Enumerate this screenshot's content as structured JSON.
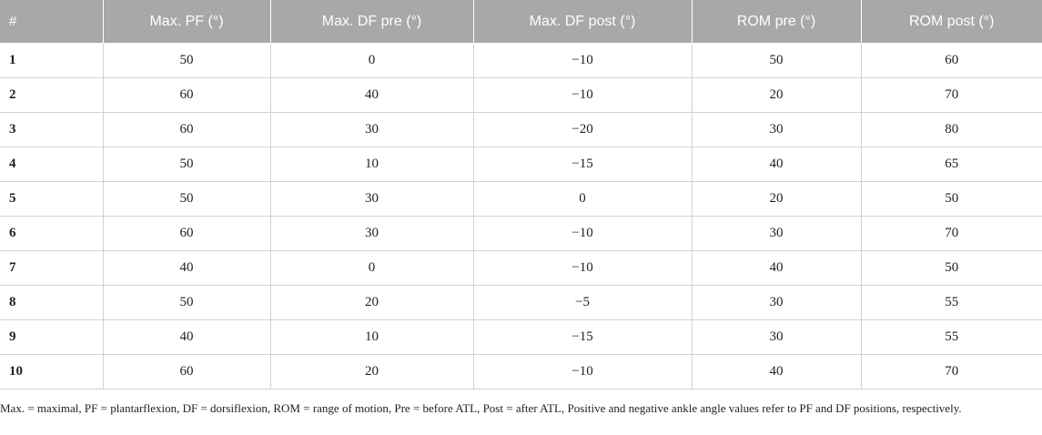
{
  "table": {
    "headers": [
      "#",
      "Max. PF (°)",
      "Max. DF pre (°)",
      "Max. DF post (°)",
      "ROM pre (°)",
      "ROM post (°)"
    ],
    "rows": [
      [
        "1",
        "50",
        "0",
        "−10",
        "50",
        "60"
      ],
      [
        "2",
        "60",
        "40",
        "−10",
        "20",
        "70"
      ],
      [
        "3",
        "60",
        "30",
        "−20",
        "30",
        "80"
      ],
      [
        "4",
        "50",
        "10",
        "−15",
        "40",
        "65"
      ],
      [
        "5",
        "50",
        "30",
        "0",
        "20",
        "50"
      ],
      [
        "6",
        "60",
        "30",
        "−10",
        "30",
        "70"
      ],
      [
        "7",
        "40",
        "0",
        "−10",
        "40",
        "50"
      ],
      [
        "8",
        "50",
        "20",
        "−5",
        "30",
        "55"
      ],
      [
        "9",
        "40",
        "10",
        "−15",
        "30",
        "55"
      ],
      [
        "10",
        "60",
        "20",
        "−10",
        "40",
        "70"
      ]
    ]
  },
  "footnote": "Max. = maximal, PF = plantarflexion, DF = dorsiflexion, ROM = range of motion, Pre = before ATL, Post = after ATL, Positive and negative ankle angle values refer to PF and DF positions, respectively."
}
